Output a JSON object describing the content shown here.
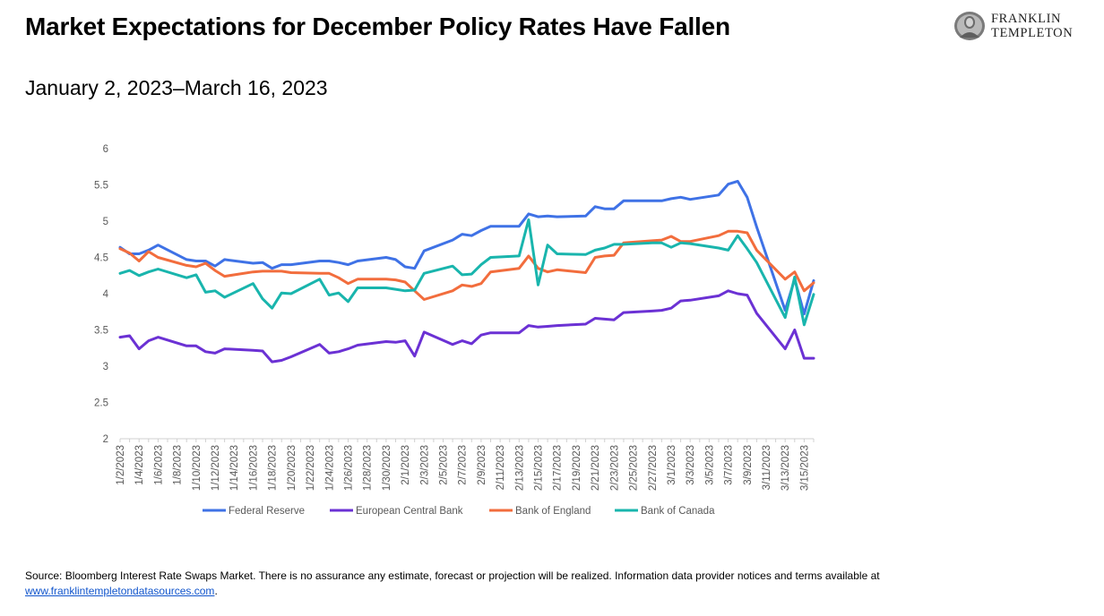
{
  "header": {
    "title": "Market Expectations for December Policy Rates Have Fallen",
    "subtitle": "January 2, 2023–March 16, 2023",
    "logo_line1": "FRANKLIN",
    "logo_line2": "TEMPLETON"
  },
  "footer": {
    "source_text": "Source: Bloomberg Interest Rate Swaps Market. There is no assurance any estimate, forecast or projection will be realized. Information data provider notices and terms available at",
    "source_link": "www.franklintempletondatasources.com",
    "source_end": "."
  },
  "chart_data": {
    "type": "line",
    "title": "",
    "xlabel": "",
    "ylabel": "",
    "ylim": [
      2,
      6
    ],
    "yticks": [
      "2",
      "2.5",
      "3",
      "3.5",
      "4",
      "4.5",
      "5",
      "5.5",
      "6"
    ],
    "grid": false,
    "legend_position": "bottom",
    "x_tick_labels": [
      "1/2/2023",
      "1/4/2023",
      "1/6/2023",
      "1/8/2023",
      "1/10/2023",
      "1/12/2023",
      "1/14/2023",
      "1/16/2023",
      "1/18/2023",
      "1/20/2023",
      "1/22/2023",
      "1/24/2023",
      "1/26/2023",
      "1/28/2023",
      "1/30/2023",
      "2/1/2023",
      "2/3/2023",
      "2/5/2023",
      "2/7/2023",
      "2/9/2023",
      "2/11/2023",
      "2/13/2023",
      "2/15/2023",
      "2/17/2023",
      "2/19/2023",
      "2/21/2023",
      "2/23/2023",
      "2/25/2023",
      "2/27/2023",
      "3/1/2023",
      "3/3/2023",
      "3/5/2023",
      "3/7/2023",
      "3/9/2023",
      "3/11/2023",
      "3/13/2023",
      "3/15/2023"
    ],
    "x": [
      "1/2/2023",
      "1/3/2023",
      "1/4/2023",
      "1/5/2023",
      "1/6/2023",
      "1/9/2023",
      "1/10/2023",
      "1/11/2023",
      "1/12/2023",
      "1/13/2023",
      "1/16/2023",
      "1/17/2023",
      "1/18/2023",
      "1/19/2023",
      "1/20/2023",
      "1/23/2023",
      "1/24/2023",
      "1/25/2023",
      "1/26/2023",
      "1/27/2023",
      "1/30/2023",
      "1/31/2023",
      "2/1/2023",
      "2/2/2023",
      "2/3/2023",
      "2/6/2023",
      "2/7/2023",
      "2/8/2023",
      "2/9/2023",
      "2/10/2023",
      "2/13/2023",
      "2/14/2023",
      "2/15/2023",
      "2/16/2023",
      "2/17/2023",
      "2/20/2023",
      "2/21/2023",
      "2/22/2023",
      "2/23/2023",
      "2/24/2023",
      "2/27/2023",
      "2/28/2023",
      "3/1/2023",
      "3/2/2023",
      "3/3/2023",
      "3/6/2023",
      "3/7/2023",
      "3/8/2023",
      "3/9/2023",
      "3/10/2023",
      "3/13/2023",
      "3/14/2023",
      "3/15/2023",
      "3/16/2023"
    ],
    "series": [
      {
        "name": "Federal Reserve",
        "color": "#3f72e6",
        "values": [
          4.64,
          4.55,
          4.55,
          4.6,
          4.67,
          4.47,
          4.45,
          4.45,
          4.38,
          4.47,
          4.42,
          4.43,
          4.35,
          4.4,
          4.4,
          4.45,
          4.45,
          4.43,
          4.4,
          4.45,
          4.5,
          4.47,
          4.37,
          4.35,
          4.59,
          4.74,
          4.82,
          4.8,
          4.87,
          4.93,
          4.93,
          5.1,
          5.06,
          5.07,
          5.06,
          5.07,
          5.2,
          5.17,
          5.17,
          5.28,
          5.28,
          5.28,
          5.31,
          5.33,
          5.3,
          5.36,
          5.51,
          5.55,
          5.33,
          4.92,
          3.77,
          4.2,
          3.72,
          4.18
        ]
      },
      {
        "name": "European Central Bank",
        "color": "#6b31d4",
        "values": [
          3.4,
          3.42,
          3.24,
          3.35,
          3.4,
          3.28,
          3.28,
          3.2,
          3.18,
          3.24,
          3.22,
          3.21,
          3.06,
          3.08,
          3.13,
          3.3,
          3.18,
          3.2,
          3.24,
          3.29,
          3.34,
          3.33,
          3.35,
          3.14,
          3.47,
          3.3,
          3.35,
          3.31,
          3.43,
          3.46,
          3.46,
          3.56,
          3.54,
          3.55,
          3.56,
          3.58,
          3.66,
          3.65,
          3.64,
          3.74,
          3.76,
          3.77,
          3.8,
          3.9,
          3.91,
          3.97,
          4.04,
          4.0,
          3.98,
          3.73,
          3.24,
          3.5,
          3.11,
          3.11
        ]
      },
      {
        "name": "Bank of England",
        "color": "#f26d3d",
        "values": [
          4.62,
          4.56,
          4.45,
          4.58,
          4.5,
          4.39,
          4.37,
          4.42,
          4.32,
          4.24,
          4.3,
          4.31,
          4.31,
          4.31,
          4.29,
          4.28,
          4.28,
          4.22,
          4.14,
          4.2,
          4.2,
          4.19,
          4.16,
          4.04,
          3.92,
          4.04,
          4.12,
          4.1,
          4.14,
          4.3,
          4.35,
          4.52,
          4.35,
          4.3,
          4.33,
          4.29,
          4.5,
          4.52,
          4.53,
          4.7,
          4.73,
          4.74,
          4.79,
          4.72,
          4.72,
          4.8,
          4.86,
          4.86,
          4.84,
          4.6,
          4.2,
          4.3,
          4.04,
          4.15
        ]
      },
      {
        "name": "Bank of Canada",
        "color": "#19b5ad",
        "values": [
          4.28,
          4.32,
          4.25,
          4.3,
          4.34,
          4.22,
          4.26,
          4.02,
          4.04,
          3.95,
          4.14,
          3.93,
          3.8,
          4.01,
          4.0,
          4.2,
          3.98,
          4.01,
          3.89,
          4.08,
          4.08,
          4.06,
          4.04,
          4.05,
          4.28,
          4.38,
          4.26,
          4.27,
          4.4,
          4.5,
          4.52,
          5.02,
          4.12,
          4.67,
          4.55,
          4.54,
          4.6,
          4.63,
          4.68,
          4.68,
          4.7,
          4.7,
          4.64,
          4.7,
          4.69,
          4.63,
          4.6,
          4.8,
          4.62,
          4.43,
          3.67,
          4.23,
          3.57,
          3.99
        ]
      }
    ]
  }
}
